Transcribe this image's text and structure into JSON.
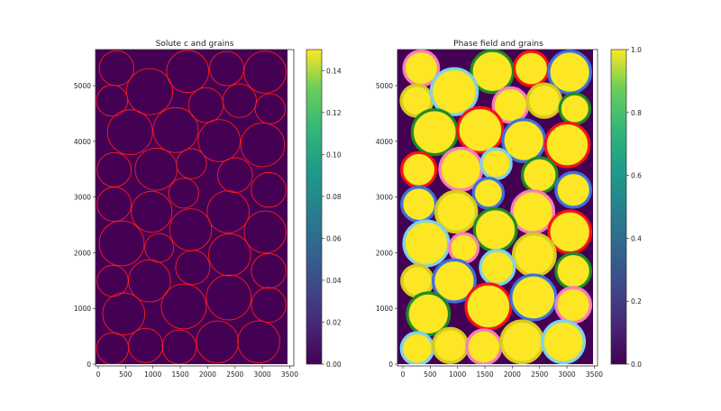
{
  "chart_data": [
    {
      "type": "heatmap",
      "title": "Solute c and grains",
      "xlim": [
        -50,
        3570
      ],
      "ylim": [
        -50,
        5650
      ],
      "xticks": [
        0,
        500,
        1000,
        1500,
        2000,
        2500,
        3000,
        3500
      ],
      "yticks": [
        0,
        1000,
        2000,
        3000,
        4000,
        5000
      ],
      "field_value": 0.0,
      "grain_outline_color": "#ff1a1a",
      "colorbar": {
        "min": 0.0,
        "max": 0.15,
        "ticks": [
          "0.00",
          "0.02",
          "0.04",
          "0.06",
          "0.08",
          "0.10",
          "0.12",
          "0.14"
        ]
      }
    },
    {
      "type": "heatmap",
      "title": "Phase field and grains",
      "xlim": [
        -50,
        3570
      ],
      "ylim": [
        -50,
        5650
      ],
      "xticks": [
        0,
        500,
        1000,
        1500,
        2000,
        2500,
        3000,
        3500
      ],
      "yticks": [
        0,
        1000,
        2000,
        3000,
        4000,
        5000
      ],
      "background_value": 0.0,
      "grain_value": 1.0,
      "colorbar": {
        "min": 0.0,
        "max": 1.0,
        "ticks": [
          "0.0",
          "0.2",
          "0.4",
          "0.6",
          "0.8",
          "1.0"
        ]
      }
    }
  ],
  "grains": [
    {
      "x": 335,
      "y": 5313,
      "r": 318,
      "ring": "#ff77c0"
    },
    {
      "x": 1635,
      "y": 5254,
      "r": 384,
      "ring": "#1f8a1f"
    },
    {
      "x": 2348,
      "y": 5307,
      "r": 313,
      "ring": "#ff1010"
    },
    {
      "x": 3050,
      "y": 5243,
      "r": 384,
      "ring": "#3b6fe0"
    },
    {
      "x": 252,
      "y": 4730,
      "r": 285,
      "ring": "#d8c820"
    },
    {
      "x": 938,
      "y": 4892,
      "r": 422,
      "ring": "#7ed0f0"
    },
    {
      "x": 1969,
      "y": 4650,
      "r": 318,
      "ring": "#ff77c0"
    },
    {
      "x": 2584,
      "y": 4730,
      "r": 307,
      "ring": "#d8c820"
    },
    {
      "x": 3143,
      "y": 4585,
      "r": 274,
      "ring": "#1f8a1f"
    },
    {
      "x": 581,
      "y": 4164,
      "r": 411,
      "ring": "#1f8a1f"
    },
    {
      "x": 1415,
      "y": 4202,
      "r": 411,
      "ring": "#ff1010"
    },
    {
      "x": 2211,
      "y": 4013,
      "r": 384,
      "ring": "#3b6fe0"
    },
    {
      "x": 3006,
      "y": 3937,
      "r": 400,
      "ring": "#ff1010"
    },
    {
      "x": 291,
      "y": 3490,
      "r": 313,
      "ring": "#ff1010"
    },
    {
      "x": 1059,
      "y": 3500,
      "r": 384,
      "ring": "#ff77c0"
    },
    {
      "x": 1706,
      "y": 3598,
      "r": 274,
      "ring": "#7ed0f0"
    },
    {
      "x": 2501,
      "y": 3393,
      "r": 318,
      "ring": "#1f8a1f"
    },
    {
      "x": 3116,
      "y": 3128,
      "r": 318,
      "ring": "#3b6fe0"
    },
    {
      "x": 291,
      "y": 2870,
      "r": 313,
      "ring": "#3b6fe0"
    },
    {
      "x": 1563,
      "y": 3069,
      "r": 274,
      "ring": "#3b6fe0"
    },
    {
      "x": 976,
      "y": 2735,
      "r": 373,
      "ring": "#d8c820"
    },
    {
      "x": 2375,
      "y": 2735,
      "r": 384,
      "ring": "#ff77c0"
    },
    {
      "x": 1690,
      "y": 2411,
      "r": 384,
      "ring": "#1f8a1f"
    },
    {
      "x": 3050,
      "y": 2373,
      "r": 384,
      "ring": "#ff1010"
    },
    {
      "x": 428,
      "y": 2168,
      "r": 411,
      "ring": "#7ed0f0"
    },
    {
      "x": 1114,
      "y": 2087,
      "r": 263,
      "ring": "#ff77c0"
    },
    {
      "x": 2403,
      "y": 1963,
      "r": 384,
      "ring": "#d8c820"
    },
    {
      "x": 1728,
      "y": 1737,
      "r": 313,
      "ring": "#7ed0f0"
    },
    {
      "x": 3116,
      "y": 1672,
      "r": 318,
      "ring": "#1f8a1f"
    },
    {
      "x": 263,
      "y": 1494,
      "r": 285,
      "ring": "#d8c820"
    },
    {
      "x": 938,
      "y": 1494,
      "r": 384,
      "ring": "#3b6fe0"
    },
    {
      "x": 466,
      "y": 901,
      "r": 384,
      "ring": "#1f8a1f"
    },
    {
      "x": 1563,
      "y": 1036,
      "r": 411,
      "ring": "#ff1010"
    },
    {
      "x": 2386,
      "y": 1197,
      "r": 411,
      "ring": "#3b6fe0"
    },
    {
      "x": 3116,
      "y": 1063,
      "r": 318,
      "ring": "#ff77c0"
    },
    {
      "x": 263,
      "y": 280,
      "r": 291,
      "ring": "#7ed0f0"
    },
    {
      "x": 867,
      "y": 334,
      "r": 313,
      "ring": "#d8c820"
    },
    {
      "x": 1481,
      "y": 307,
      "r": 313,
      "ring": "#ff77c0"
    },
    {
      "x": 2178,
      "y": 399,
      "r": 384,
      "ring": "#d8c820"
    },
    {
      "x": 2935,
      "y": 399,
      "r": 384,
      "ring": "#7ed0f0"
    }
  ],
  "colors": {
    "low": "#440154",
    "high": "#fde725"
  }
}
